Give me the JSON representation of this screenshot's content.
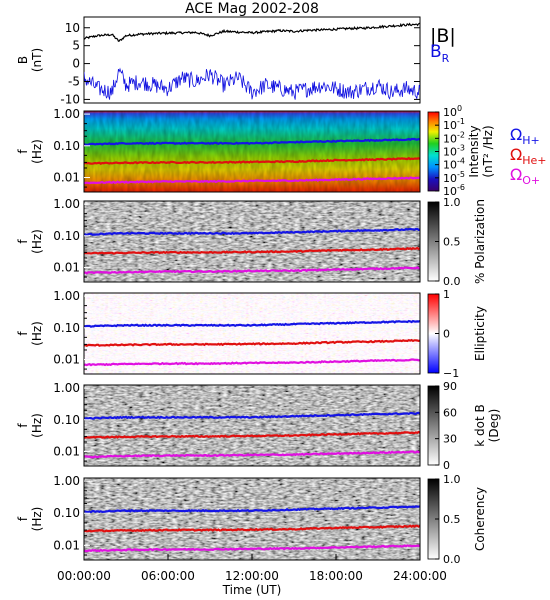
{
  "title": "ACE Mag 2002-208",
  "time_axis": {
    "ticks": [
      "00:00:00",
      "06:00:00",
      "12:00:00",
      "18:00:00",
      "24:00:00"
    ],
    "tick_hours": [
      0,
      6,
      12,
      18,
      24
    ],
    "range_hours": [
      0,
      24
    ],
    "label": "Time (UT)"
  },
  "freq_axis": {
    "ticks": [
      "1.00",
      "0.10",
      "0.01"
    ],
    "tick_values": [
      1.0,
      0.1,
      0.01
    ],
    "range_hz": [
      0.0035,
      1.25
    ],
    "scale": "log",
    "label_top": "f",
    "label_bottom": "(Hz)"
  },
  "field_panel": {
    "ylabel_top": "B",
    "ylabel_bottom": "(nT)",
    "ylim": [
      -11,
      13
    ],
    "yticks": [
      "10",
      "5",
      "0",
      "-5",
      "-10"
    ],
    "ytick_values": [
      10,
      5,
      0,
      -5,
      -10
    ],
    "legend": [
      {
        "label": "|B|",
        "color": "#000000"
      },
      {
        "label": "B",
        "sub": "R",
        "color": "#1010e0"
      }
    ]
  },
  "spectral_panels": [
    {
      "id": "intensity",
      "colorbar": "rainbow",
      "cbar_ticks": [
        {
          "base": "10",
          "exp": "0"
        },
        {
          "base": "10",
          "exp": "-1"
        },
        {
          "base": "10",
          "exp": "-2"
        },
        {
          "base": "10",
          "exp": "-3"
        },
        {
          "base": "10",
          "exp": "-4"
        },
        {
          "base": "10",
          "exp": "-5"
        },
        {
          "base": "10",
          "exp": "-6"
        }
      ],
      "cbar_label_top": "Intensity",
      "cbar_label_bottom": "(nT² /Hz)"
    },
    {
      "id": "polarization",
      "colorbar": "gray",
      "cbar_ticks": [
        {
          "text": "1.0"
        },
        {
          "text": "0.5"
        },
        {
          "text": "0.0"
        }
      ],
      "cbar_label_top": "% Polarization",
      "cbar_label_bottom": ""
    },
    {
      "id": "ellipticity",
      "colorbar": "bwr",
      "cbar_ticks": [
        {
          "text": "1"
        },
        {
          "text": "0"
        },
        {
          "text": "−1"
        }
      ],
      "cbar_label_top": "Ellipticity",
      "cbar_label_bottom": ""
    },
    {
      "id": "kdotb",
      "colorbar": "gray",
      "cbar_ticks": [
        {
          "text": "90"
        },
        {
          "text": "60"
        },
        {
          "text": "30"
        },
        {
          "text": "0"
        }
      ],
      "cbar_label_top": "k dot B",
      "cbar_label_bottom": "(Deg)"
    },
    {
      "id": "coherency",
      "colorbar": "gray",
      "cbar_ticks": [
        {
          "text": "1.0"
        },
        {
          "text": "0.5"
        },
        {
          "text": "0.0"
        }
      ],
      "cbar_label_top": "Coherency",
      "cbar_label_bottom": ""
    }
  ],
  "gyro_legend": [
    {
      "symbol": "Ω",
      "sub": "H+",
      "color": "#1515e6"
    },
    {
      "symbol": "Ω",
      "sub": "He+",
      "color": "#e01010"
    },
    {
      "symbol": "Ω",
      "sub": "O+",
      "color": "#e010e0"
    }
  ],
  "colors": {
    "B_total": "#000000",
    "B_R": "#1010e0",
    "H_plus": "#1515e6",
    "He_plus": "#e01010",
    "O_plus": "#e010e0"
  },
  "chart_data": [
    {
      "type": "line",
      "panel": "magnetic-field",
      "x_hours": [
        0,
        1,
        2,
        2.5,
        3,
        4,
        5,
        6,
        7,
        8,
        9,
        10,
        11,
        12,
        13,
        14,
        15,
        16,
        17,
        18,
        19,
        20,
        21,
        22,
        23,
        24
      ],
      "series": [
        {
          "name": "|B|",
          "values": [
            7.0,
            7.8,
            8.1,
            6.2,
            7.8,
            8.2,
            8.4,
            8.5,
            8.6,
            8.7,
            7.8,
            9.0,
            8.8,
            8.6,
            8.9,
            9.2,
            9.0,
            9.3,
            9.4,
            9.6,
            9.8,
            9.9,
            10.2,
            10.5,
            10.8,
            11.0
          ]
        },
        {
          "name": "B_R",
          "values": [
            -4,
            -7,
            -8,
            -2,
            -6,
            -5,
            -6,
            -7,
            -4,
            -5,
            -3,
            -6,
            -4,
            -8,
            -6,
            -7,
            -8,
            -7,
            -6,
            -7,
            -8,
            -7,
            -6,
            -8,
            -7,
            -8
          ]
        }
      ],
      "ylim": [
        -11,
        13
      ]
    },
    {
      "type": "line",
      "panel": "gyrofrequency-traces",
      "x_hours": [
        0,
        3,
        6,
        9,
        12,
        15,
        18,
        21,
        24
      ],
      "series": [
        {
          "name": "H+",
          "values": [
            0.11,
            0.12,
            0.12,
            0.12,
            0.12,
            0.13,
            0.14,
            0.15,
            0.16
          ]
        },
        {
          "name": "He+",
          "values": [
            0.028,
            0.029,
            0.03,
            0.03,
            0.031,
            0.032,
            0.035,
            0.037,
            0.04
          ]
        },
        {
          "name": "O+",
          "values": [
            0.0068,
            0.0072,
            0.0075,
            0.0075,
            0.0078,
            0.008,
            0.0086,
            0.0092,
            0.0098
          ]
        }
      ],
      "scale": "log"
    }
  ]
}
